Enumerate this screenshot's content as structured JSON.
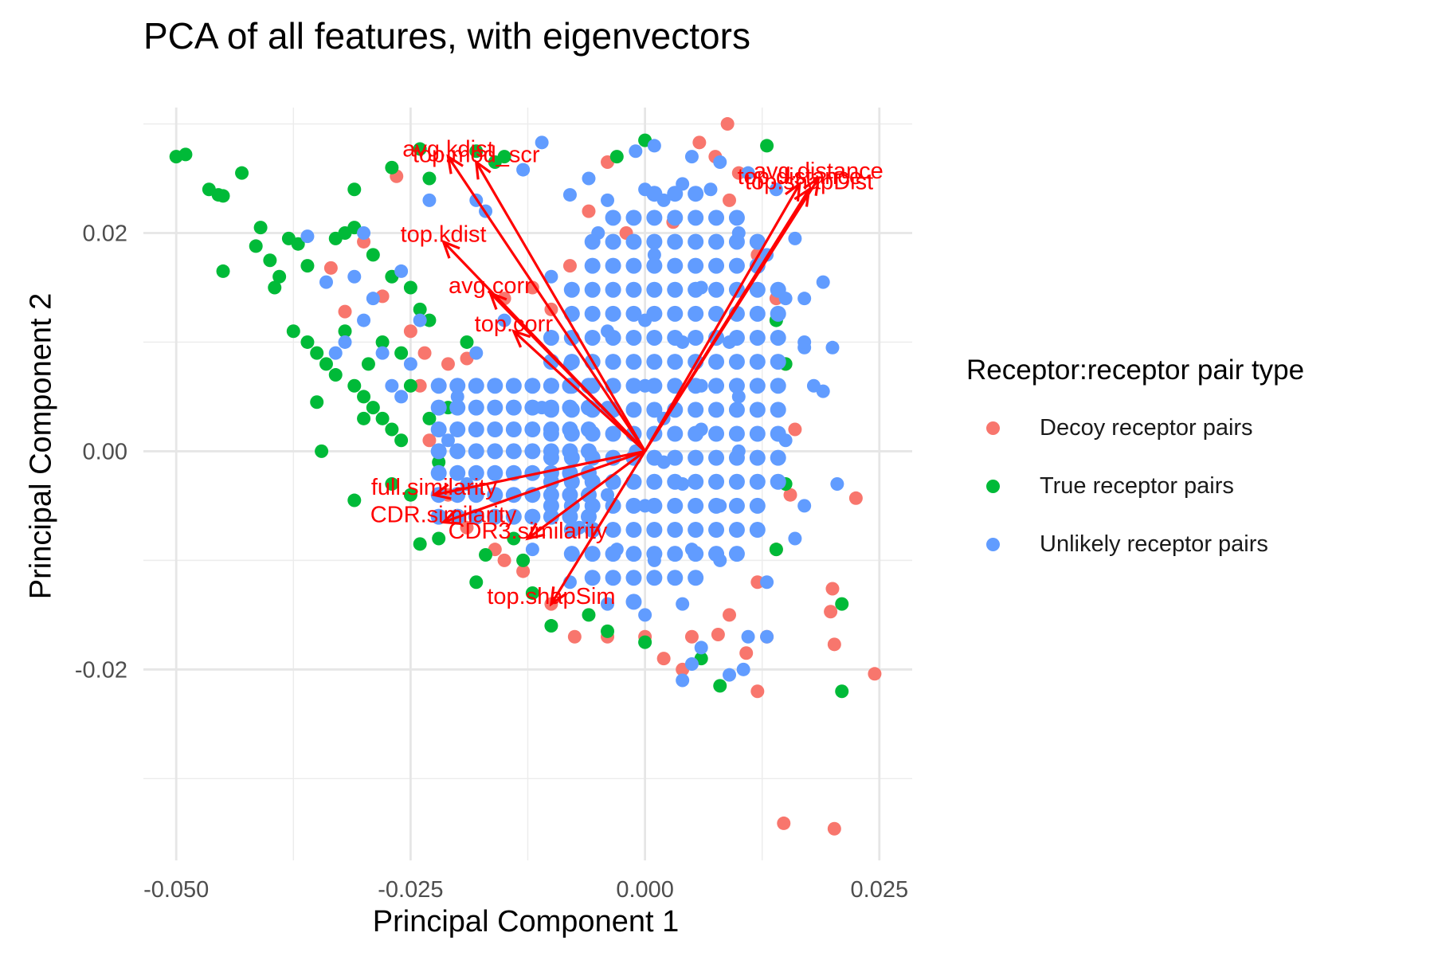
{
  "chart_data": {
    "type": "scatter",
    "title": "PCA of all features, with eigenvectors",
    "xlabel": "Principal Component 1",
    "ylabel": "Principal Component 2",
    "xlim": [
      -0.0535,
      0.0285
    ],
    "ylim": [
      -0.0375,
      0.0315
    ],
    "x_ticks": [
      {
        "value": -0.05,
        "label": "-0.050"
      },
      {
        "value": -0.025,
        "label": "-0.025"
      },
      {
        "value": 0.0,
        "label": "0.000"
      },
      {
        "value": 0.025,
        "label": "0.025"
      }
    ],
    "y_ticks": [
      {
        "value": -0.02,
        "label": "-0.02"
      },
      {
        "value": 0.0,
        "label": "0.00"
      },
      {
        "value": 0.02,
        "label": "0.02"
      }
    ],
    "grid": true,
    "legend": {
      "title": "Receptor:receptor pair type",
      "placement": "right",
      "entries": [
        {
          "label": "Decoy receptor pairs",
          "color": "#F8766D"
        },
        {
          "label": "True receptor pairs",
          "color": "#00BA38"
        },
        {
          "label": "Unlikely receptor pairs",
          "color": "#619CFF"
        }
      ]
    },
    "series": [
      {
        "name": "Decoy receptor pairs",
        "color": "#F8766D",
        "points": [
          [
            0.0088,
            0.03
          ],
          [
            0.0058,
            0.0283
          ],
          [
            0.0148,
            -0.0341
          ],
          [
            0.0202,
            -0.0346
          ],
          [
            0.0245,
            -0.0204
          ],
          [
            0.0225,
            -0.0043
          ],
          [
            0.02,
            -0.0126
          ],
          [
            0.0198,
            -0.0147
          ],
          [
            0.0202,
            -0.0177
          ],
          [
            0.012,
            -0.022
          ],
          [
            0.0108,
            -0.0185
          ],
          [
            0.0078,
            -0.0168
          ],
          [
            -0.0265,
            0.0252
          ],
          [
            -0.03,
            0.0192
          ],
          [
            -0.0335,
            0.0168
          ],
          [
            -0.032,
            0.0128
          ],
          [
            -0.028,
            0.0142
          ],
          [
            -0.025,
            0.011
          ],
          [
            -0.0235,
            0.009
          ],
          [
            -0.021,
            0.008
          ],
          [
            -0.019,
            0.0085
          ],
          [
            -0.015,
            0.014
          ],
          [
            -0.012,
            0.015
          ],
          [
            -0.01,
            0.013
          ],
          [
            -0.008,
            0.017
          ],
          [
            -0.006,
            0.022
          ],
          [
            -0.004,
            0.0265
          ],
          [
            0.0075,
            0.027
          ],
          [
            0.01,
            0.0255
          ],
          [
            0.012,
            0.018
          ],
          [
            0.014,
            0.014
          ],
          [
            0.015,
            0.008
          ],
          [
            0.016,
            0.002
          ],
          [
            0.0155,
            -0.004
          ],
          [
            0.014,
            -0.009
          ],
          [
            0.012,
            -0.012
          ],
          [
            0.009,
            -0.015
          ],
          [
            0.005,
            -0.017
          ],
          [
            0.0,
            -0.017
          ],
          [
            -0.004,
            -0.017
          ],
          [
            -0.0075,
            -0.017
          ],
          [
            -0.01,
            -0.014
          ],
          [
            -0.013,
            -0.011
          ],
          [
            -0.016,
            -0.009
          ],
          [
            -0.019,
            -0.007
          ],
          [
            -0.021,
            -0.004
          ],
          [
            -0.023,
            0.001
          ],
          [
            -0.024,
            0.006
          ],
          [
            -0.015,
            -0.01
          ],
          [
            0.002,
            -0.019
          ],
          [
            0.004,
            -0.02
          ],
          [
            0.013,
            -0.017
          ],
          [
            0.009,
            0.023
          ],
          [
            0.003,
            0.021
          ],
          [
            -0.002,
            0.02
          ]
        ]
      },
      {
        "name": "True receptor pairs",
        "color": "#00BA38",
        "points": [
          [
            -0.05,
            0.027
          ],
          [
            -0.049,
            0.0272
          ],
          [
            -0.0465,
            0.024
          ],
          [
            -0.0455,
            0.0235
          ],
          [
            -0.045,
            0.0234
          ],
          [
            -0.043,
            0.0255
          ],
          [
            -0.041,
            0.0205
          ],
          [
            -0.0415,
            0.0188
          ],
          [
            -0.04,
            0.0175
          ],
          [
            -0.039,
            0.016
          ],
          [
            -0.038,
            0.0195
          ],
          [
            -0.037,
            0.019
          ],
          [
            -0.036,
            0.017
          ],
          [
            -0.045,
            0.0165
          ],
          [
            -0.0395,
            0.015
          ],
          [
            -0.0375,
            0.011
          ],
          [
            -0.036,
            0.01
          ],
          [
            -0.035,
            0.009
          ],
          [
            -0.034,
            0.008
          ],
          [
            -0.033,
            0.007
          ],
          [
            -0.031,
            0.006
          ],
          [
            -0.03,
            0.005
          ],
          [
            -0.029,
            0.004
          ],
          [
            -0.028,
            0.003
          ],
          [
            -0.027,
            0.002
          ],
          [
            -0.026,
            0.001
          ],
          [
            -0.0345,
            0.0
          ],
          [
            -0.032,
            0.011
          ],
          [
            -0.033,
            0.0195
          ],
          [
            -0.031,
            0.0205
          ],
          [
            -0.029,
            0.018
          ],
          [
            -0.027,
            0.016
          ],
          [
            -0.025,
            0.015
          ],
          [
            -0.024,
            0.013
          ],
          [
            -0.023,
            0.012
          ],
          [
            -0.035,
            0.0045
          ],
          [
            -0.03,
            0.003
          ],
          [
            -0.0295,
            0.008
          ],
          [
            -0.028,
            0.01
          ],
          [
            -0.026,
            0.009
          ],
          [
            -0.031,
            0.024
          ],
          [
            -0.032,
            0.02
          ],
          [
            -0.027,
            0.026
          ],
          [
            -0.024,
            0.0277
          ],
          [
            -0.023,
            0.025
          ],
          [
            -0.018,
            0.0275
          ],
          [
            -0.016,
            0.0265
          ],
          [
            -0.015,
            0.027
          ],
          [
            -0.003,
            0.027
          ],
          [
            0.0,
            0.0285
          ],
          [
            0.013,
            0.028
          ],
          [
            0.014,
            0.012
          ],
          [
            0.015,
            0.008
          ],
          [
            0.021,
            -0.014
          ],
          [
            0.021,
            -0.022
          ],
          [
            0.008,
            -0.0215
          ],
          [
            -0.01,
            -0.016
          ],
          [
            -0.012,
            -0.013
          ],
          [
            -0.013,
            -0.01
          ],
          [
            -0.017,
            -0.0095
          ],
          [
            -0.02,
            -0.006
          ],
          [
            -0.022,
            -0.008
          ],
          [
            -0.024,
            -0.0085
          ],
          [
            -0.025,
            -0.004
          ],
          [
            -0.031,
            -0.0045
          ],
          [
            -0.027,
            -0.003
          ],
          [
            -0.022,
            -0.001
          ],
          [
            -0.02,
            -0.002
          ],
          [
            -0.018,
            -0.012
          ],
          [
            -0.014,
            -0.008
          ],
          [
            -0.006,
            -0.015
          ],
          [
            -0.004,
            -0.0165
          ],
          [
            0.0,
            -0.0175
          ],
          [
            0.006,
            -0.019
          ],
          [
            0.014,
            -0.009
          ],
          [
            0.015,
            -0.003
          ],
          [
            -0.025,
            0.006
          ],
          [
            -0.023,
            0.003
          ],
          [
            -0.021,
            0.004
          ],
          [
            -0.019,
            0.01
          ]
        ]
      },
      {
        "name": "Unlikely receptor pairs",
        "color": "#619CFF",
        "points": [
          [
            -0.036,
            0.0197
          ],
          [
            -0.034,
            0.0155
          ],
          [
            -0.032,
            0.01
          ],
          [
            -0.033,
            0.009
          ],
          [
            -0.029,
            0.014
          ],
          [
            -0.026,
            0.0165
          ],
          [
            -0.023,
            0.023
          ],
          [
            -0.013,
            0.0258
          ],
          [
            -0.011,
            0.0283
          ],
          [
            -0.001,
            0.0275
          ],
          [
            0.001,
            0.028
          ],
          [
            0.005,
            0.027
          ],
          [
            0.008,
            0.0265
          ],
          [
            0.011,
            0.0255
          ],
          [
            0.014,
            0.024
          ],
          [
            0.016,
            0.0195
          ],
          [
            0.019,
            0.0155
          ],
          [
            0.017,
            0.014
          ],
          [
            0.02,
            0.0095
          ],
          [
            0.019,
            0.0055
          ],
          [
            0.017,
            0.0095
          ],
          [
            0.0205,
            -0.003
          ],
          [
            0.013,
            -0.017
          ],
          [
            0.0105,
            -0.02
          ],
          [
            0.006,
            -0.018
          ],
          [
            0.005,
            -0.0195
          ],
          [
            0.004,
            -0.021
          ],
          [
            0.009,
            -0.0205
          ],
          [
            0.011,
            -0.017
          ],
          [
            0.013,
            -0.012
          ],
          [
            0.016,
            -0.008
          ],
          [
            0.017,
            -0.005
          ],
          [
            -0.024,
            0.012
          ],
          [
            -0.025,
            0.008
          ],
          [
            -0.026,
            0.005
          ],
          [
            -0.027,
            0.006
          ],
          [
            -0.028,
            0.009
          ],
          [
            -0.03,
            0.012
          ],
          [
            -0.031,
            0.016
          ],
          [
            -0.03,
            0.02
          ],
          [
            -0.018,
            0.023
          ],
          [
            -0.017,
            0.022
          ],
          [
            -0.008,
            0.0235
          ],
          [
            -0.006,
            0.025
          ],
          [
            -0.004,
            0.023
          ],
          [
            0.0,
            0.024
          ],
          [
            0.002,
            0.023
          ],
          [
            0.004,
            0.0245
          ],
          [
            0.007,
            0.024
          ],
          [
            0.01,
            0.02
          ],
          [
            0.013,
            0.018
          ],
          [
            0.015,
            0.014
          ],
          [
            0.017,
            0.01
          ],
          [
            0.018,
            0.006
          ],
          [
            0.015,
            0.001
          ],
          [
            0.012,
            -0.005
          ],
          [
            0.008,
            -0.01
          ],
          [
            0.004,
            -0.014
          ],
          [
            0.0,
            -0.015
          ],
          [
            -0.004,
            -0.014
          ],
          [
            -0.008,
            -0.012
          ],
          [
            -0.012,
            -0.009
          ],
          [
            -0.016,
            -0.006
          ],
          [
            -0.019,
            -0.003
          ],
          [
            -0.021,
            0.001
          ],
          [
            -0.02,
            0.005
          ],
          [
            -0.018,
            0.009
          ],
          [
            -0.015,
            0.012
          ],
          [
            -0.01,
            0.016
          ],
          [
            -0.005,
            0.02
          ],
          [
            0.001,
            0.018
          ],
          [
            0.006,
            0.015
          ],
          [
            0.009,
            0.01
          ],
          [
            0.01,
            0.005
          ],
          [
            0.01,
            0.0
          ],
          [
            0.008,
            -0.005
          ],
          [
            0.005,
            -0.009
          ],
          [
            0.001,
            -0.01
          ],
          [
            -0.003,
            -0.009
          ],
          [
            -0.007,
            -0.007
          ],
          [
            -0.01,
            -0.004
          ],
          [
            -0.012,
            0.0
          ],
          [
            -0.011,
            0.004
          ],
          [
            -0.008,
            0.008
          ],
          [
            -0.004,
            0.011
          ],
          [
            0.0,
            0.012
          ],
          [
            0.004,
            0.01
          ],
          [
            0.006,
            0.006
          ],
          [
            0.006,
            0.002
          ],
          [
            0.004,
            -0.003
          ],
          [
            0.0,
            -0.005
          ],
          [
            -0.004,
            -0.004
          ],
          [
            -0.006,
            0.0
          ],
          [
            -0.004,
            0.004
          ],
          [
            0.0,
            0.006
          ],
          [
            0.002,
            0.003
          ],
          [
            0.002,
            -0.001
          ],
          [
            -0.001,
            0.0
          ]
        ]
      }
    ],
    "eigenvectors": [
      {
        "label": "avg.kdist",
        "x": -0.021,
        "y": 0.027
      },
      {
        "label": "top.mod_scr",
        "x": -0.018,
        "y": 0.0265
      },
      {
        "label": "top.kdist",
        "x": -0.0215,
        "y": 0.0192
      },
      {
        "label": "avg.corr",
        "x": -0.0165,
        "y": 0.0145
      },
      {
        "label": "top.corr",
        "x": -0.014,
        "y": 0.011
      },
      {
        "label": "avg.distance",
        "x": 0.0185,
        "y": 0.025
      },
      {
        "label": "top.distance",
        "x": 0.0165,
        "y": 0.0245
      },
      {
        "label": "top.shapDist",
        "x": 0.0175,
        "y": 0.024
      },
      {
        "label": "full.similarity",
        "x": -0.0225,
        "y": -0.004
      },
      {
        "label": "CDR.similarity",
        "x": -0.0215,
        "y": -0.0065
      },
      {
        "label": "CDR3.similarity",
        "x": -0.0125,
        "y": -0.008
      },
      {
        "label": "top.shapSim",
        "x": -0.01,
        "y": -0.014
      }
    ],
    "eigenvector_color": "#FF0000"
  }
}
